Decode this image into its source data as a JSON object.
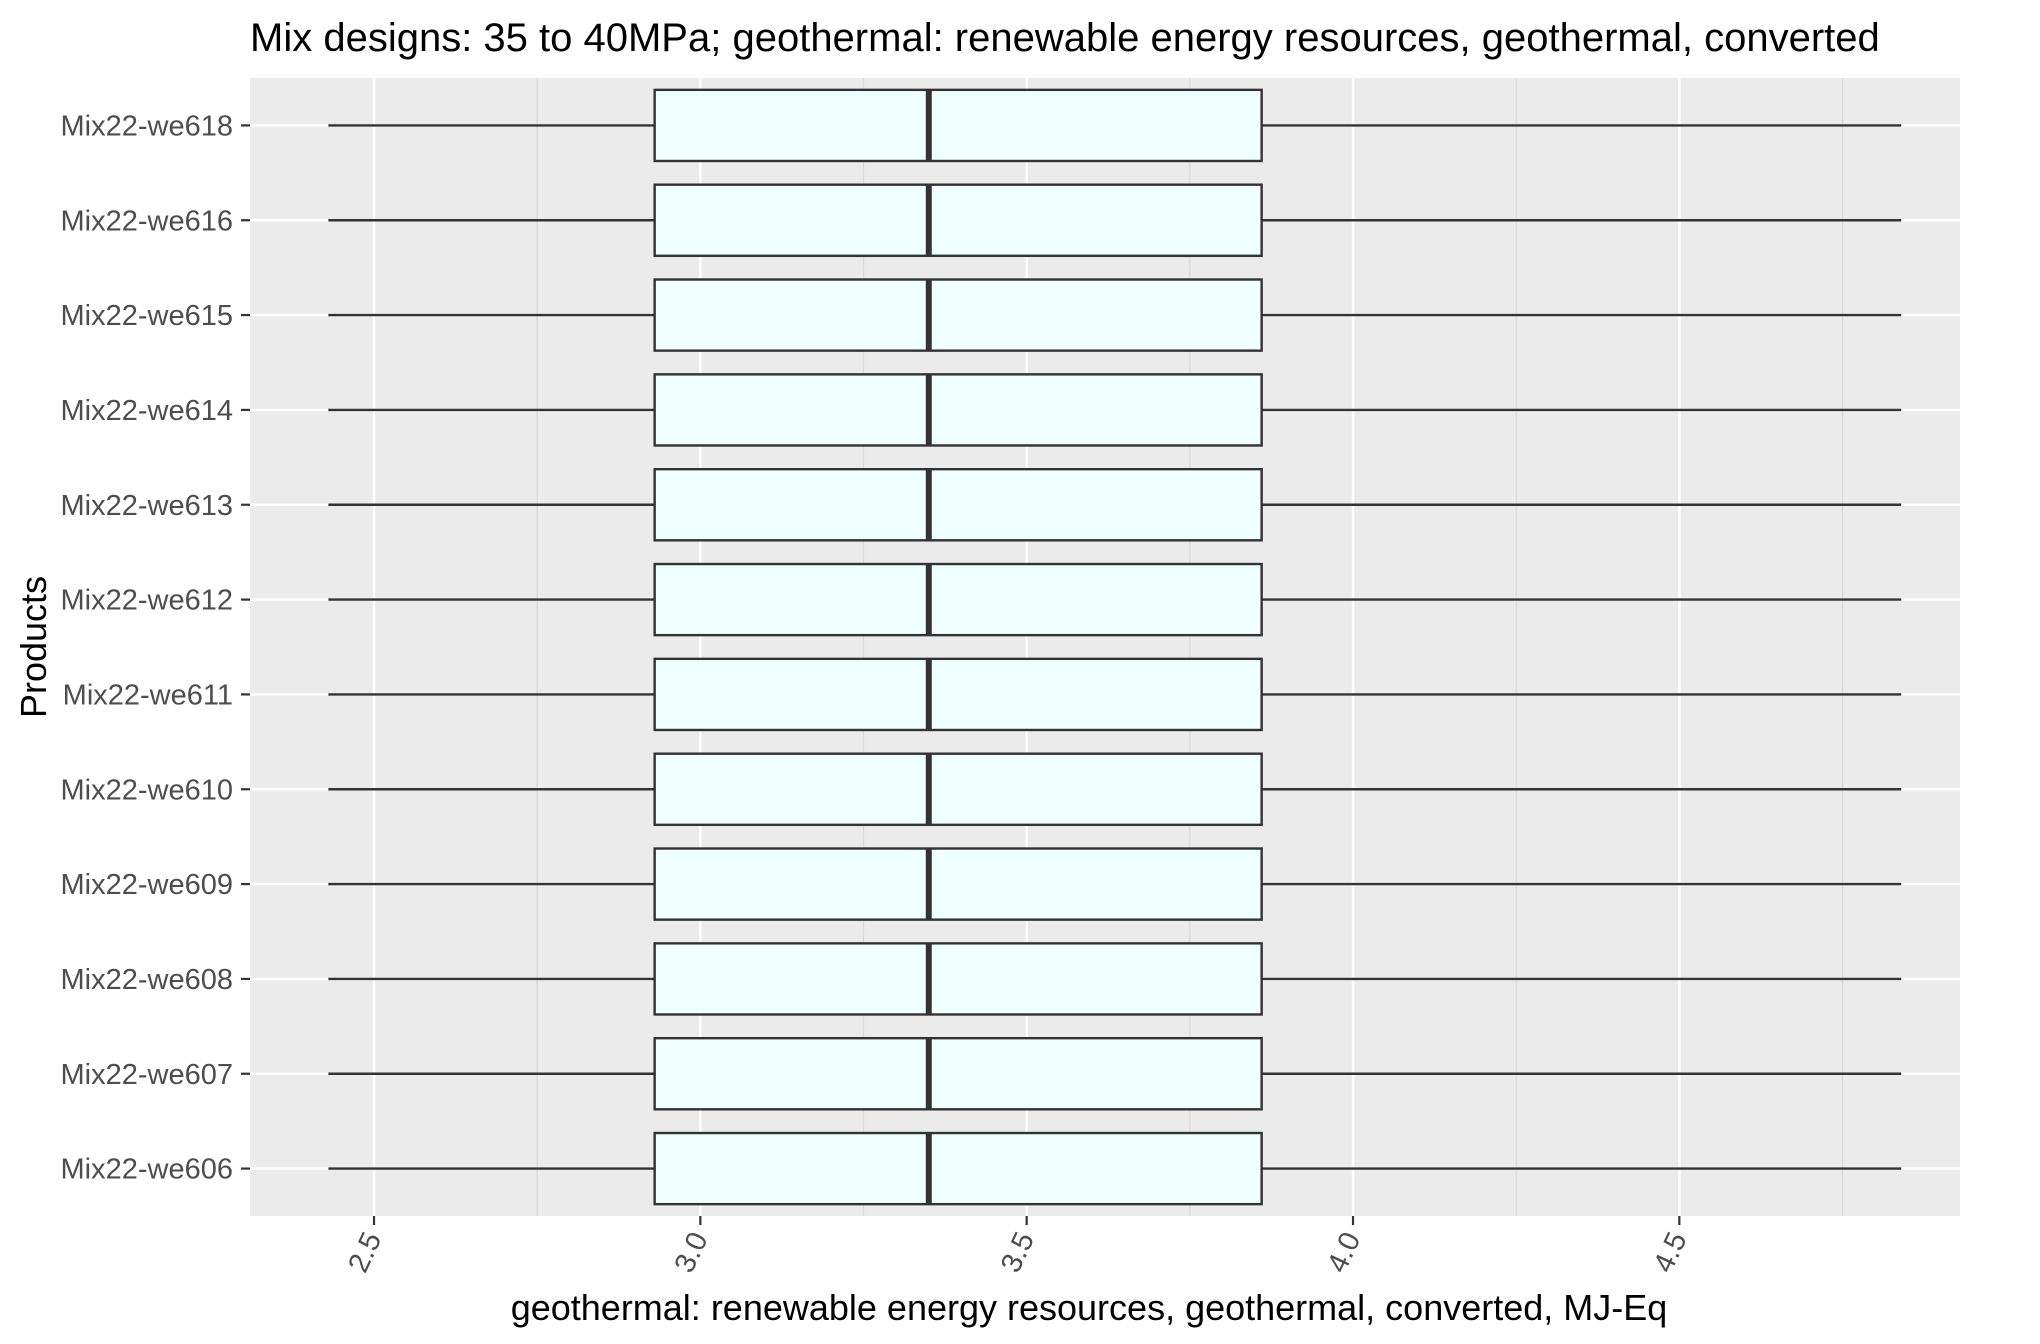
{
  "chart_data": {
    "type": "boxplot",
    "orientation": "horizontal",
    "title": "Mix designs: 35 to 40MPa; geothermal: renewable energy resources, geothermal, converted",
    "xlabel": "geothermal: renewable energy resources, geothermal, converted, MJ-Eq",
    "ylabel": "Products",
    "xlim": [
      2.31,
      4.93
    ],
    "xticks": [
      2.5,
      3.0,
      3.5,
      4.0,
      4.5
    ],
    "xtick_labels": [
      "2.5",
      "3.0",
      "3.5",
      "4.0",
      "4.5"
    ],
    "categories": [
      "Mix22-we606",
      "Mix22-we607",
      "Mix22-we608",
      "Mix22-we609",
      "Mix22-we610",
      "Mix22-we611",
      "Mix22-we612",
      "Mix22-we613",
      "Mix22-we614",
      "Mix22-we615",
      "Mix22-we616",
      "Mix22-we618"
    ],
    "series": [
      {
        "category": "Mix22-we606",
        "min": 2.43,
        "q1": 2.93,
        "median": 3.35,
        "q3": 3.86,
        "max": 4.84
      },
      {
        "category": "Mix22-we607",
        "min": 2.43,
        "q1": 2.93,
        "median": 3.35,
        "q3": 3.86,
        "max": 4.84
      },
      {
        "category": "Mix22-we608",
        "min": 2.43,
        "q1": 2.93,
        "median": 3.35,
        "q3": 3.86,
        "max": 4.84
      },
      {
        "category": "Mix22-we609",
        "min": 2.43,
        "q1": 2.93,
        "median": 3.35,
        "q3": 3.86,
        "max": 4.84
      },
      {
        "category": "Mix22-we610",
        "min": 2.43,
        "q1": 2.93,
        "median": 3.35,
        "q3": 3.86,
        "max": 4.84
      },
      {
        "category": "Mix22-we611",
        "min": 2.43,
        "q1": 2.93,
        "median": 3.35,
        "q3": 3.86,
        "max": 4.84
      },
      {
        "category": "Mix22-we612",
        "min": 2.43,
        "q1": 2.93,
        "median": 3.35,
        "q3": 3.86,
        "max": 4.84
      },
      {
        "category": "Mix22-we613",
        "min": 2.43,
        "q1": 2.93,
        "median": 3.35,
        "q3": 3.86,
        "max": 4.84
      },
      {
        "category": "Mix22-we614",
        "min": 2.43,
        "q1": 2.93,
        "median": 3.35,
        "q3": 3.86,
        "max": 4.84
      },
      {
        "category": "Mix22-we615",
        "min": 2.43,
        "q1": 2.93,
        "median": 3.35,
        "q3": 3.86,
        "max": 4.84
      },
      {
        "category": "Mix22-we616",
        "min": 2.43,
        "q1": 2.93,
        "median": 3.35,
        "q3": 3.86,
        "max": 4.84
      },
      {
        "category": "Mix22-we618",
        "min": 2.43,
        "q1": 2.93,
        "median": 3.35,
        "q3": 3.86,
        "max": 4.84
      }
    ],
    "grid": true,
    "colors": {
      "panel_background": "#ebebeb",
      "grid_major": "#ffffff",
      "grid_minor": "#d9d9d9",
      "box_fill": "#f0ffff",
      "box_stroke": "#333333"
    }
  }
}
